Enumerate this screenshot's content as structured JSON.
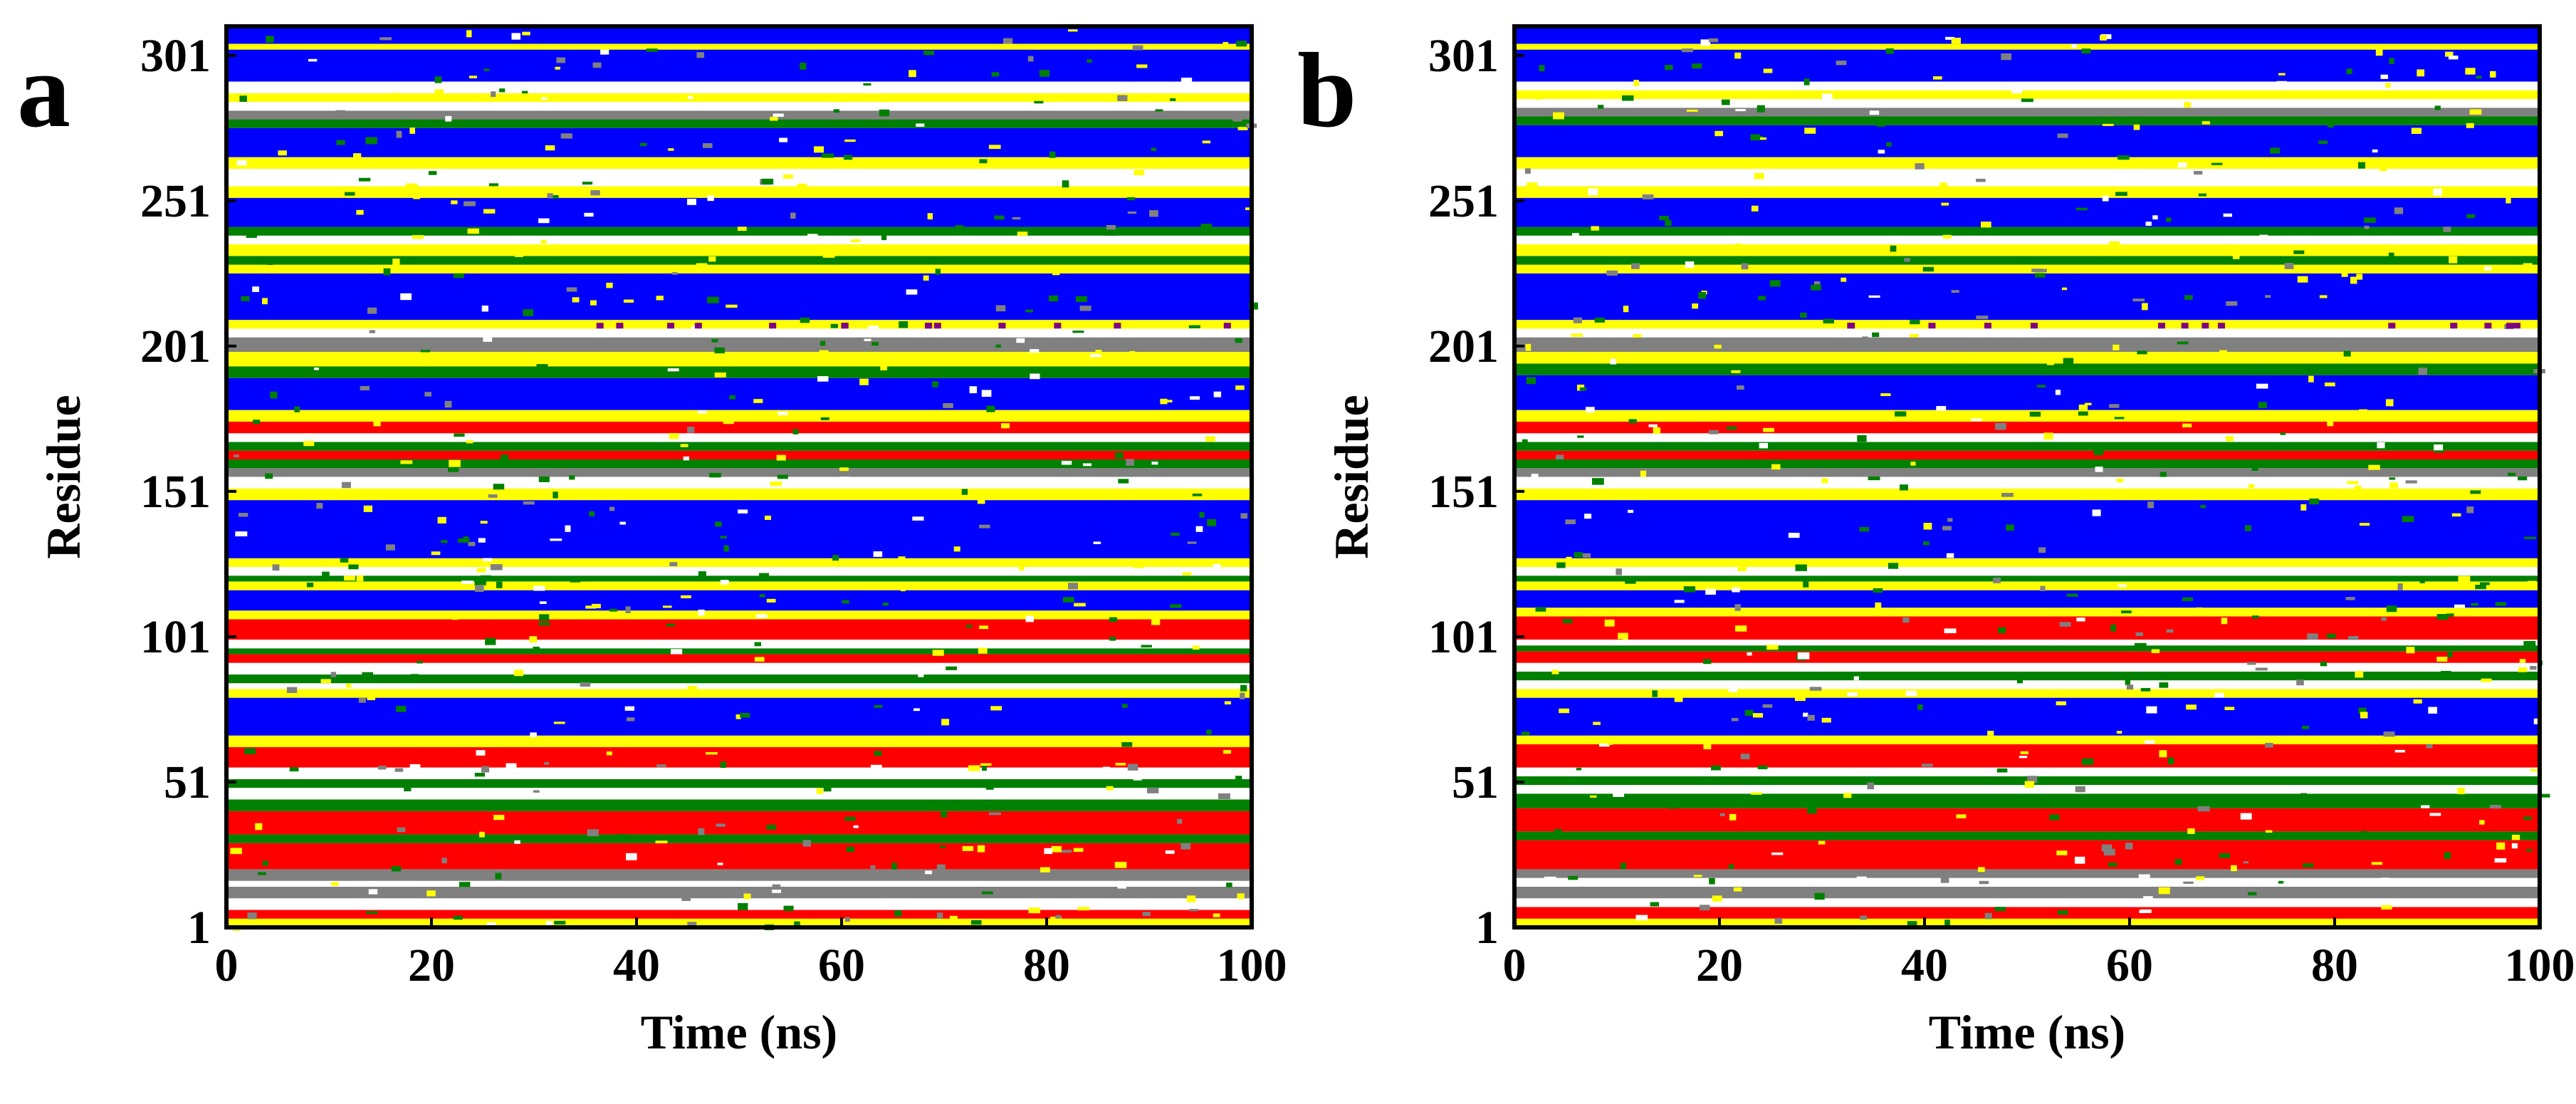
{
  "colors": {
    "helix": "#0000FF",
    "strand": "#FF0000",
    "turn": "#FFFF00",
    "bend": "#008000",
    "coil": "#FFFFFF",
    "three_ten": "#808080",
    "pi": "#800080",
    "frame": "#000000"
  },
  "chart_data": [
    {
      "type": "heatmap",
      "panel": "a",
      "title": "",
      "xlabel": "Time (ns)",
      "ylabel": "Residue",
      "xlim": [
        0,
        100
      ],
      "ylim": [
        1,
        311
      ],
      "xticks": [
        0,
        20,
        40,
        60,
        80,
        100
      ],
      "yticks": [
        1,
        51,
        101,
        151,
        201,
        251,
        301
      ],
      "grid": false,
      "bands": [
        {
          "from": 1,
          "to": 4,
          "color": "yellow"
        },
        {
          "from": 4,
          "to": 7,
          "color": "red"
        },
        {
          "from": 7,
          "to": 11,
          "color": "white"
        },
        {
          "from": 11,
          "to": 15,
          "color": "gray"
        },
        {
          "from": 15,
          "to": 17,
          "color": "white"
        },
        {
          "from": 17,
          "to": 21,
          "color": "gray"
        },
        {
          "from": 21,
          "to": 30,
          "color": "red"
        },
        {
          "from": 30,
          "to": 33,
          "color": "green"
        },
        {
          "from": 33,
          "to": 41,
          "color": "red"
        },
        {
          "from": 41,
          "to": 45,
          "color": "green"
        },
        {
          "from": 45,
          "to": 49,
          "color": "white"
        },
        {
          "from": 49,
          "to": 52,
          "color": "green"
        },
        {
          "from": 52,
          "to": 56,
          "color": "white"
        },
        {
          "from": 56,
          "to": 63,
          "color": "red"
        },
        {
          "from": 63,
          "to": 67,
          "color": "yellow"
        },
        {
          "from": 67,
          "to": 80,
          "color": "blue"
        },
        {
          "from": 80,
          "to": 83,
          "color": "yellow"
        },
        {
          "from": 83,
          "to": 85,
          "color": "white"
        },
        {
          "from": 85,
          "to": 88,
          "color": "green"
        },
        {
          "from": 88,
          "to": 92,
          "color": "white"
        },
        {
          "from": 92,
          "to": 95,
          "color": "red"
        },
        {
          "from": 95,
          "to": 97,
          "color": "green"
        },
        {
          "from": 97,
          "to": 100,
          "color": "white"
        },
        {
          "from": 100,
          "to": 107,
          "color": "red"
        },
        {
          "from": 107,
          "to": 110,
          "color": "yellow"
        },
        {
          "from": 110,
          "to": 117,
          "color": "blue"
        },
        {
          "from": 117,
          "to": 120,
          "color": "yellow"
        },
        {
          "from": 120,
          "to": 122,
          "color": "green"
        },
        {
          "from": 122,
          "to": 125,
          "color": "white"
        },
        {
          "from": 125,
          "to": 128,
          "color": "yellow"
        },
        {
          "from": 128,
          "to": 148,
          "color": "blue"
        },
        {
          "from": 148,
          "to": 152,
          "color": "yellow"
        },
        {
          "from": 152,
          "to": 156,
          "color": "white"
        },
        {
          "from": 156,
          "to": 159,
          "color": "gray"
        },
        {
          "from": 159,
          "to": 162,
          "color": "green"
        },
        {
          "from": 162,
          "to": 165,
          "color": "red"
        },
        {
          "from": 165,
          "to": 168,
          "color": "green"
        },
        {
          "from": 168,
          "to": 171,
          "color": "white"
        },
        {
          "from": 171,
          "to": 175,
          "color": "red"
        },
        {
          "from": 175,
          "to": 179,
          "color": "yellow"
        },
        {
          "from": 179,
          "to": 190,
          "color": "blue"
        },
        {
          "from": 190,
          "to": 194,
          "color": "green"
        },
        {
          "from": 194,
          "to": 199,
          "color": "yellow"
        },
        {
          "from": 199,
          "to": 204,
          "color": "gray"
        },
        {
          "from": 204,
          "to": 207,
          "color": "white"
        },
        {
          "from": 207,
          "to": 210,
          "color": "yellow"
        },
        {
          "from": 210,
          "to": 226,
          "color": "blue"
        },
        {
          "from": 226,
          "to": 229,
          "color": "yellow"
        },
        {
          "from": 229,
          "to": 232,
          "color": "green"
        },
        {
          "from": 232,
          "to": 236,
          "color": "yellow"
        },
        {
          "from": 236,
          "to": 239,
          "color": "white"
        },
        {
          "from": 239,
          "to": 242,
          "color": "green"
        },
        {
          "from": 242,
          "to": 252,
          "color": "blue"
        },
        {
          "from": 252,
          "to": 256,
          "color": "yellow"
        },
        {
          "from": 256,
          "to": 262,
          "color": "white"
        },
        {
          "from": 262,
          "to": 266,
          "color": "yellow"
        },
        {
          "from": 266,
          "to": 276,
          "color": "blue"
        },
        {
          "from": 276,
          "to": 279,
          "color": "green"
        },
        {
          "from": 279,
          "to": 282,
          "color": "gray"
        },
        {
          "from": 282,
          "to": 285,
          "color": "white"
        },
        {
          "from": 285,
          "to": 288,
          "color": "yellow"
        },
        {
          "from": 288,
          "to": 292,
          "color": "white"
        },
        {
          "from": 292,
          "to": 303,
          "color": "blue"
        },
        {
          "from": 303,
          "to": 305,
          "color": "yellow"
        },
        {
          "from": 305,
          "to": 311,
          "color": "blue"
        }
      ]
    },
    {
      "type": "heatmap",
      "panel": "b",
      "title": "",
      "xlabel": "Time (ns)",
      "ylabel": "Residue",
      "xlim": [
        0,
        100
      ],
      "ylim": [
        1,
        311
      ],
      "xticks": [
        0,
        20,
        40,
        60,
        80,
        100
      ],
      "yticks": [
        1,
        51,
        101,
        151,
        201,
        251,
        301
      ],
      "grid": false,
      "bands": [
        {
          "from": 1,
          "to": 4,
          "color": "yellow"
        },
        {
          "from": 4,
          "to": 8,
          "color": "red"
        },
        {
          "from": 8,
          "to": 11,
          "color": "white"
        },
        {
          "from": 11,
          "to": 15,
          "color": "gray"
        },
        {
          "from": 15,
          "to": 18,
          "color": "white"
        },
        {
          "from": 18,
          "to": 21,
          "color": "gray"
        },
        {
          "from": 21,
          "to": 31,
          "color": "red"
        },
        {
          "from": 31,
          "to": 34,
          "color": "green"
        },
        {
          "from": 34,
          "to": 42,
          "color": "red"
        },
        {
          "from": 42,
          "to": 47,
          "color": "green"
        },
        {
          "from": 47,
          "to": 50,
          "color": "white"
        },
        {
          "from": 50,
          "to": 53,
          "color": "green"
        },
        {
          "from": 53,
          "to": 56,
          "color": "white"
        },
        {
          "from": 56,
          "to": 64,
          "color": "red"
        },
        {
          "from": 64,
          "to": 67,
          "color": "yellow"
        },
        {
          "from": 67,
          "to": 80,
          "color": "blue"
        },
        {
          "from": 80,
          "to": 83,
          "color": "yellow"
        },
        {
          "from": 83,
          "to": 86,
          "color": "white"
        },
        {
          "from": 86,
          "to": 89,
          "color": "green"
        },
        {
          "from": 89,
          "to": 92,
          "color": "white"
        },
        {
          "from": 92,
          "to": 96,
          "color": "red"
        },
        {
          "from": 96,
          "to": 98,
          "color": "green"
        },
        {
          "from": 98,
          "to": 100,
          "color": "white"
        },
        {
          "from": 100,
          "to": 108,
          "color": "red"
        },
        {
          "from": 108,
          "to": 111,
          "color": "yellow"
        },
        {
          "from": 111,
          "to": 117,
          "color": "blue"
        },
        {
          "from": 117,
          "to": 120,
          "color": "yellow"
        },
        {
          "from": 120,
          "to": 122,
          "color": "green"
        },
        {
          "from": 122,
          "to": 125,
          "color": "white"
        },
        {
          "from": 125,
          "to": 128,
          "color": "yellow"
        },
        {
          "from": 128,
          "to": 148,
          "color": "blue"
        },
        {
          "from": 148,
          "to": 152,
          "color": "yellow"
        },
        {
          "from": 152,
          "to": 156,
          "color": "white"
        },
        {
          "from": 156,
          "to": 159,
          "color": "gray"
        },
        {
          "from": 159,
          "to": 162,
          "color": "green"
        },
        {
          "from": 162,
          "to": 165,
          "color": "red"
        },
        {
          "from": 165,
          "to": 168,
          "color": "green"
        },
        {
          "from": 168,
          "to": 171,
          "color": "white"
        },
        {
          "from": 171,
          "to": 175,
          "color": "red"
        },
        {
          "from": 175,
          "to": 179,
          "color": "yellow"
        },
        {
          "from": 179,
          "to": 191,
          "color": "blue"
        },
        {
          "from": 191,
          "to": 195,
          "color": "green"
        },
        {
          "from": 195,
          "to": 199,
          "color": "yellow"
        },
        {
          "from": 199,
          "to": 204,
          "color": "gray"
        },
        {
          "from": 204,
          "to": 207,
          "color": "white"
        },
        {
          "from": 207,
          "to": 210,
          "color": "yellow"
        },
        {
          "from": 210,
          "to": 226,
          "color": "blue"
        },
        {
          "from": 226,
          "to": 229,
          "color": "yellow"
        },
        {
          "from": 229,
          "to": 232,
          "color": "green"
        },
        {
          "from": 232,
          "to": 236,
          "color": "yellow"
        },
        {
          "from": 236,
          "to": 239,
          "color": "white"
        },
        {
          "from": 239,
          "to": 242,
          "color": "green"
        },
        {
          "from": 242,
          "to": 252,
          "color": "blue"
        },
        {
          "from": 252,
          "to": 256,
          "color": "yellow"
        },
        {
          "from": 256,
          "to": 262,
          "color": "white"
        },
        {
          "from": 262,
          "to": 266,
          "color": "yellow"
        },
        {
          "from": 266,
          "to": 277,
          "color": "blue"
        },
        {
          "from": 277,
          "to": 280,
          "color": "green"
        },
        {
          "from": 280,
          "to": 283,
          "color": "gray"
        },
        {
          "from": 283,
          "to": 286,
          "color": "white"
        },
        {
          "from": 286,
          "to": 289,
          "color": "yellow"
        },
        {
          "from": 289,
          "to": 292,
          "color": "white"
        },
        {
          "from": 292,
          "to": 303,
          "color": "blue"
        },
        {
          "from": 303,
          "to": 305,
          "color": "yellow"
        },
        {
          "from": 305,
          "to": 311,
          "color": "blue"
        }
      ]
    }
  ]
}
